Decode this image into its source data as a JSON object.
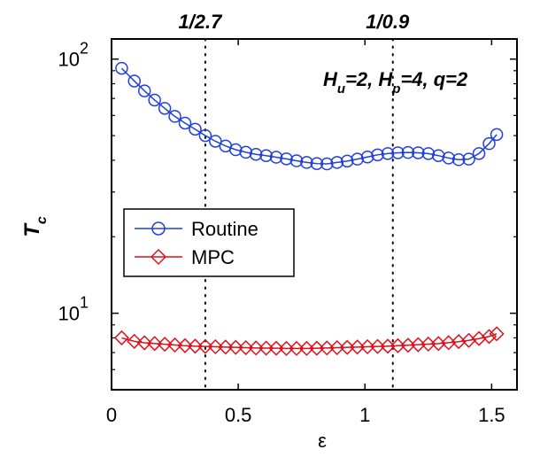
{
  "chart_data": {
    "type": "line",
    "title": "",
    "xlabel": "ε",
    "ylabel_main": "T",
    "ylabel_sub": "c",
    "xlim": [
      0,
      1.6
    ],
    "ylim": [
      5,
      120
    ],
    "yscale": "log",
    "x_ticks": [
      {
        "value": 0,
        "label": "0"
      },
      {
        "value": 0.5,
        "label": "0.5"
      },
      {
        "value": 1,
        "label": "1"
      },
      {
        "value": 1.5,
        "label": "1.5"
      }
    ],
    "y_ticks": [
      {
        "value": 10,
        "base": "10",
        "exp": "1"
      },
      {
        "value": 100,
        "base": "10",
        "exp": "2"
      }
    ],
    "top_labels": [
      {
        "value": 0.37,
        "label": "1/2.7"
      },
      {
        "value": 1.11,
        "label": "1/0.9"
      }
    ],
    "vlines": [
      0.37,
      1.11
    ],
    "annotation": {
      "h_u": "H",
      "h_u_sub": "u",
      "h_u_rest": "=2, ",
      "h_p": "H",
      "h_p_sub": "p",
      "h_p_rest": "=4, q=2"
    },
    "legend": {
      "position": "center-left",
      "entries": [
        "Routine",
        "MPC"
      ]
    },
    "x": [
      0.04,
      0.09,
      0.13,
      0.17,
      0.21,
      0.25,
      0.29,
      0.33,
      0.37,
      0.41,
      0.45,
      0.49,
      0.53,
      0.57,
      0.61,
      0.65,
      0.69,
      0.73,
      0.77,
      0.81,
      0.85,
      0.89,
      0.93,
      0.97,
      1.01,
      1.05,
      1.09,
      1.13,
      1.17,
      1.21,
      1.25,
      1.29,
      1.33,
      1.37,
      1.41,
      1.45,
      1.49,
      1.52
    ],
    "series": [
      {
        "name": "Routine",
        "color": "#1f3fe0",
        "marker": "circle",
        "values": [
          92,
          82,
          75,
          69,
          64,
          59.5,
          56,
          53,
          50,
          47.5,
          45.5,
          44,
          43,
          42.2,
          41.7,
          41.1,
          40.5,
          39.8,
          39.2,
          38.8,
          38.7,
          39.2,
          39.7,
          40.4,
          41.2,
          42,
          42.5,
          42.8,
          42.9,
          42.8,
          42.5,
          41.7,
          40.8,
          40.2,
          40.4,
          42.5,
          46.5,
          50.5
        ]
      },
      {
        "name": "MPC",
        "color": "#e0101a",
        "marker": "diamond",
        "values": [
          8.0,
          7.75,
          7.65,
          7.6,
          7.55,
          7.5,
          7.45,
          7.42,
          7.4,
          7.38,
          7.36,
          7.34,
          7.32,
          7.3,
          7.29,
          7.28,
          7.27,
          7.27,
          7.27,
          7.28,
          7.3,
          7.32,
          7.34,
          7.36,
          7.38,
          7.4,
          7.42,
          7.45,
          7.48,
          7.52,
          7.56,
          7.6,
          7.66,
          7.73,
          7.82,
          7.95,
          8.1,
          8.3
        ]
      }
    ]
  }
}
